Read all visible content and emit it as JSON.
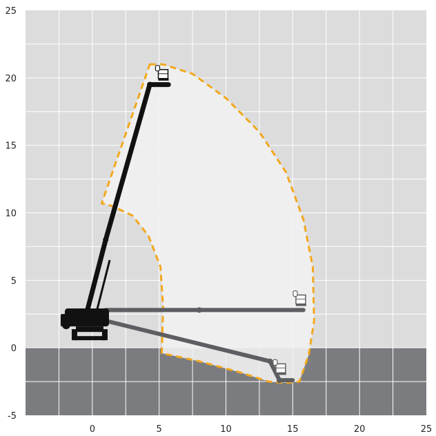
{
  "chart_data": {
    "type": "working-range-diagram",
    "xlim": [
      -5,
      25
    ],
    "ylim": [
      -5,
      25
    ],
    "x_ticks": [
      "0",
      "5",
      "10",
      "15",
      "20",
      "25"
    ],
    "y_ticks": [
      "-5",
      "0",
      "5",
      "10",
      "15",
      "20",
      "25"
    ],
    "grid": true,
    "ground_level": 0,
    "envelope": {
      "description": "reach envelope outline (dashed)",
      "points": [
        [
          4.3,
          21.0
        ],
        [
          5.3,
          21.0
        ],
        [
          7.5,
          20.3
        ],
        [
          10.0,
          18.5
        ],
        [
          12.5,
          16.0
        ],
        [
          14.5,
          13.0
        ],
        [
          15.8,
          9.5
        ],
        [
          16.5,
          6.0
        ],
        [
          16.6,
          2.0
        ],
        [
          16.2,
          -0.5
        ],
        [
          15.5,
          -2.5
        ],
        [
          14.5,
          -2.6
        ],
        [
          13.2,
          -2.5
        ],
        [
          11.0,
          -1.8
        ],
        [
          8.0,
          -1.0
        ],
        [
          5.2,
          -0.4
        ],
        [
          5.3,
          3.0
        ],
        [
          5.1,
          6.0
        ],
        [
          4.2,
          8.3
        ],
        [
          3.0,
          9.8
        ],
        [
          1.5,
          10.5
        ],
        [
          0.7,
          10.7
        ],
        [
          4.3,
          21.0
        ]
      ]
    },
    "booms": [
      {
        "name": "",
        "points": [
          [
            -0.5,
            2.3
          ],
          [
            1.0,
            8.0
          ],
          [
            4.3,
            19.5
          ],
          [
            5.7,
            19.5
          ]
        ]
      },
      {
        "name": "",
        "points": [
          [
            1.0,
            2.8
          ],
          [
            8.0,
            2.8
          ],
          [
            15.8,
            2.8
          ]
        ]
      },
      {
        "name": "",
        "points": [
          [
            1.0,
            2.0
          ],
          [
            13.3,
            -1.0
          ],
          [
            14.0,
            -2.4
          ],
          [
            15.0,
            -2.4
          ]
        ]
      }
    ],
    "baskets": [
      [
        5.3,
        20.0
      ],
      [
        15.6,
        3.3
      ],
      [
        14.1,
        -1.8
      ]
    ]
  },
  "colors": {
    "sky": "#dcdcdd",
    "ground": "#7b7c7f",
    "grid": "#ffffff",
    "envelope_fill": "#f1f1f2",
    "envelope_stroke": "#f2a81d",
    "boom_main": "#111111",
    "boom_alt": "#5d5e61"
  }
}
